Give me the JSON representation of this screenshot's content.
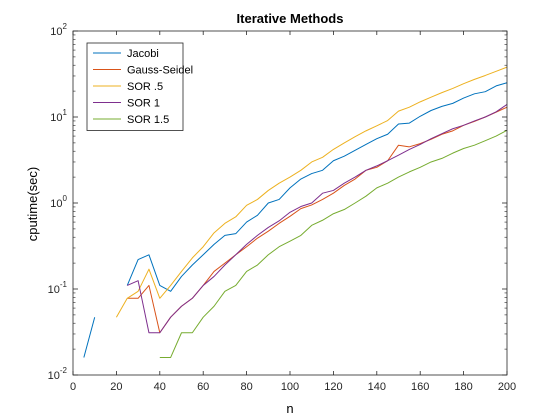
{
  "chart_data": {
    "type": "line",
    "title": "Iterative Methods",
    "xlabel": "n",
    "ylabel": "cputime(sec)",
    "xlim": [
      0,
      200
    ],
    "ylim": [
      0.01,
      100
    ],
    "yscale": "log",
    "grid": false,
    "legend_position": "top-left",
    "x_ticks": [
      {
        "value": 0,
        "label": "0"
      },
      {
        "value": 20,
        "label": "20"
      },
      {
        "value": 40,
        "label": "40"
      },
      {
        "value": 60,
        "label": "60"
      },
      {
        "value": 80,
        "label": "80"
      },
      {
        "value": 100,
        "label": "100"
      },
      {
        "value": 120,
        "label": "120"
      },
      {
        "value": 140,
        "label": "140"
      },
      {
        "value": 160,
        "label": "160"
      },
      {
        "value": 180,
        "label": "180"
      },
      {
        "value": 200,
        "label": "200"
      }
    ],
    "y_ticks": [
      {
        "value": 0.01,
        "base": "10",
        "exp": "-2"
      },
      {
        "value": 0.1,
        "base": "10",
        "exp": "-1"
      },
      {
        "value": 1,
        "base": "10",
        "exp": "0"
      },
      {
        "value": 10,
        "base": "10",
        "exp": "1"
      },
      {
        "value": 100,
        "base": "10",
        "exp": "2"
      }
    ],
    "series": [
      {
        "name": "Jacobi",
        "color": "#0072BD",
        "x": [
          5,
          10,
          null,
          25,
          30,
          35,
          40,
          45,
          50,
          55,
          60,
          65,
          70,
          75,
          80,
          85,
          90,
          95,
          100,
          105,
          110,
          115,
          120,
          125,
          130,
          135,
          140,
          145,
          150,
          155,
          160,
          165,
          170,
          175,
          180,
          185,
          190,
          195,
          200
        ],
        "y": [
          0.016,
          0.047,
          null,
          0.11,
          0.22,
          0.25,
          0.11,
          0.094,
          0.14,
          0.19,
          0.25,
          0.33,
          0.42,
          0.44,
          0.6,
          0.72,
          1.0,
          1.1,
          1.5,
          1.9,
          2.2,
          2.4,
          3.1,
          3.5,
          4.1,
          4.8,
          5.6,
          6.3,
          8.3,
          8.5,
          10.2,
          11.9,
          13.3,
          14.4,
          16.6,
          18.6,
          19.7,
          23.0,
          25.0
        ]
      },
      {
        "name": "Gauss-Seidel",
        "color": "#D95319",
        "x": [
          25,
          30,
          35,
          40,
          45,
          50,
          55,
          60,
          65,
          70,
          75,
          80,
          85,
          90,
          95,
          100,
          105,
          110,
          115,
          120,
          125,
          130,
          135,
          140,
          145,
          150,
          155,
          160,
          165,
          170,
          175,
          180,
          185,
          190,
          195,
          200
        ],
        "y": [
          0.078,
          0.078,
          0.11,
          0.031,
          0.047,
          0.063,
          0.078,
          0.11,
          0.16,
          0.2,
          0.25,
          0.31,
          0.39,
          0.47,
          0.58,
          0.7,
          0.86,
          0.95,
          1.1,
          1.3,
          1.6,
          1.9,
          2.4,
          2.6,
          3.1,
          4.7,
          4.5,
          4.9,
          5.5,
          6.3,
          6.9,
          8.0,
          8.9,
          10.0,
          11.4,
          13.0
        ]
      },
      {
        "name": "SOR .5",
        "color": "#EDB120",
        "x": [
          20,
          25,
          30,
          35,
          40,
          45,
          50,
          55,
          60,
          65,
          70,
          75,
          80,
          85,
          90,
          95,
          100,
          105,
          110,
          115,
          120,
          125,
          130,
          135,
          140,
          145,
          150,
          155,
          160,
          165,
          170,
          175,
          180,
          185,
          190,
          195,
          200
        ],
        "y": [
          0.047,
          0.078,
          0.094,
          0.17,
          0.078,
          0.11,
          0.16,
          0.23,
          0.31,
          0.45,
          0.58,
          0.69,
          0.94,
          1.1,
          1.4,
          1.7,
          2.0,
          2.4,
          3.0,
          3.4,
          4.2,
          5.0,
          5.9,
          6.9,
          7.9,
          9.1,
          11.7,
          13.0,
          15.0,
          17.0,
          19.2,
          21.5,
          24.4,
          27.4,
          30.4,
          34.0,
          38.0
        ]
      },
      {
        "name": "SOR 1",
        "color": "#7E2F8E",
        "x": [
          25,
          30,
          35,
          40,
          45,
          50,
          55,
          60,
          65,
          70,
          75,
          80,
          85,
          90,
          95,
          100,
          105,
          110,
          115,
          120,
          125,
          130,
          135,
          140,
          145,
          150,
          155,
          160,
          165,
          170,
          175,
          180,
          185,
          190,
          195,
          200
        ],
        "y": [
          0.11,
          0.125,
          0.031,
          0.031,
          0.047,
          0.063,
          0.078,
          0.11,
          0.14,
          0.19,
          0.25,
          0.33,
          0.42,
          0.52,
          0.62,
          0.78,
          0.91,
          1.0,
          1.3,
          1.4,
          1.7,
          2.0,
          2.4,
          2.7,
          3.1,
          3.6,
          4.2,
          4.8,
          5.6,
          6.4,
          7.3,
          8.0,
          9.0,
          10.0,
          11.5,
          14.0
        ]
      },
      {
        "name": "SOR 1.5",
        "color": "#77AC30",
        "x": [
          40,
          45,
          50,
          55,
          60,
          65,
          70,
          75,
          80,
          85,
          90,
          95,
          100,
          105,
          110,
          115,
          120,
          125,
          130,
          135,
          140,
          145,
          150,
          155,
          160,
          165,
          170,
          175,
          180,
          185,
          190,
          195,
          200
        ],
        "y": [
          0.016,
          0.016,
          0.031,
          0.031,
          0.047,
          0.063,
          0.094,
          0.11,
          0.16,
          0.19,
          0.25,
          0.31,
          0.36,
          0.42,
          0.55,
          0.63,
          0.75,
          0.84,
          1.0,
          1.2,
          1.5,
          1.7,
          2.0,
          2.3,
          2.6,
          3.0,
          3.3,
          3.8,
          4.3,
          4.7,
          5.3,
          6.0,
          7.0
        ]
      }
    ]
  }
}
